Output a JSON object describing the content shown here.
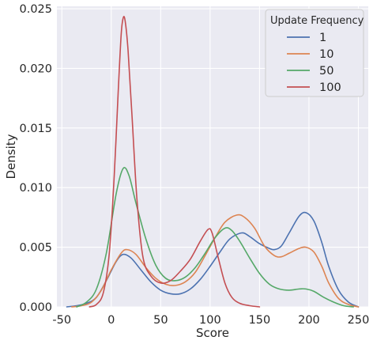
{
  "chart_data": {
    "type": "line",
    "subtype": "kde",
    "title": "",
    "xlabel": "Score",
    "ylabel": "Density",
    "xlim": [
      -55,
      260
    ],
    "ylim": [
      0,
      0.0252
    ],
    "x_ticks": [
      -50,
      0,
      50,
      100,
      150,
      200,
      250
    ],
    "y_ticks": [
      0.0,
      0.005,
      0.01,
      0.015,
      0.02,
      0.025
    ],
    "y_tick_labels": [
      "0.000",
      "0.005",
      "0.010",
      "0.015",
      "0.020",
      "0.025"
    ],
    "grid": true,
    "legend": {
      "title": "Update Frequency",
      "position": "top-right"
    },
    "series": [
      {
        "name": "1",
        "color": "#4c72b0",
        "points": [
          [
            -45,
            0
          ],
          [
            -35,
            0.0001
          ],
          [
            -25,
            0.0003
          ],
          [
            -15,
            0.0008
          ],
          [
            -5,
            0.0022
          ],
          [
            5,
            0.0038
          ],
          [
            12,
            0.0044
          ],
          [
            20,
            0.0041
          ],
          [
            30,
            0.0031
          ],
          [
            40,
            0.0021
          ],
          [
            50,
            0.0014
          ],
          [
            60,
            0.0011
          ],
          [
            70,
            0.0011
          ],
          [
            80,
            0.0015
          ],
          [
            90,
            0.0023
          ],
          [
            100,
            0.0034
          ],
          [
            110,
            0.0046
          ],
          [
            120,
            0.0057
          ],
          [
            132,
            0.0062
          ],
          [
            140,
            0.0059
          ],
          [
            150,
            0.0053
          ],
          [
            160,
            0.0049
          ],
          [
            165,
            0.0048
          ],
          [
            172,
            0.0051
          ],
          [
            180,
            0.0062
          ],
          [
            190,
            0.0076
          ],
          [
            197,
            0.0079
          ],
          [
            205,
            0.0072
          ],
          [
            213,
            0.0054
          ],
          [
            220,
            0.0034
          ],
          [
            230,
            0.0014
          ],
          [
            240,
            0.0004
          ],
          [
            250,
            0
          ]
        ]
      },
      {
        "name": "10",
        "color": "#dd8452",
        "points": [
          [
            -40,
            0
          ],
          [
            -30,
            0.0001
          ],
          [
            -20,
            0.0004
          ],
          [
            -10,
            0.0014
          ],
          [
            0,
            0.0031
          ],
          [
            10,
            0.0045
          ],
          [
            16,
            0.0048
          ],
          [
            25,
            0.0044
          ],
          [
            35,
            0.0033
          ],
          [
            45,
            0.0024
          ],
          [
            55,
            0.0019
          ],
          [
            65,
            0.0018
          ],
          [
            75,
            0.0021
          ],
          [
            85,
            0.0029
          ],
          [
            95,
            0.0043
          ],
          [
            105,
            0.0058
          ],
          [
            115,
            0.0071
          ],
          [
            127,
            0.0077
          ],
          [
            135,
            0.0075
          ],
          [
            145,
            0.0066
          ],
          [
            155,
            0.0051
          ],
          [
            165,
            0.0043
          ],
          [
            172,
            0.0042
          ],
          [
            180,
            0.0045
          ],
          [
            190,
            0.0049
          ],
          [
            197,
            0.005
          ],
          [
            205,
            0.0046
          ],
          [
            213,
            0.0034
          ],
          [
            220,
            0.002
          ],
          [
            230,
            0.0007
          ],
          [
            240,
            0.0002
          ],
          [
            250,
            0
          ]
        ]
      },
      {
        "name": "50",
        "color": "#55a868",
        "points": [
          [
            -35,
            0
          ],
          [
            -25,
            0.0004
          ],
          [
            -15,
            0.0015
          ],
          [
            -5,
            0.0045
          ],
          [
            5,
            0.0095
          ],
          [
            12,
            0.0116
          ],
          [
            18,
            0.011
          ],
          [
            25,
            0.0087
          ],
          [
            35,
            0.0057
          ],
          [
            45,
            0.0035
          ],
          [
            55,
            0.0024
          ],
          [
            65,
            0.0022
          ],
          [
            75,
            0.0025
          ],
          [
            85,
            0.0033
          ],
          [
            95,
            0.0045
          ],
          [
            105,
            0.0058
          ],
          [
            115,
            0.0066
          ],
          [
            122,
            0.0064
          ],
          [
            130,
            0.0055
          ],
          [
            140,
            0.0041
          ],
          [
            150,
            0.0028
          ],
          [
            160,
            0.0019
          ],
          [
            170,
            0.0015
          ],
          [
            180,
            0.0014
          ],
          [
            190,
            0.0015
          ],
          [
            197,
            0.0015
          ],
          [
            205,
            0.0013
          ],
          [
            215,
            0.0008
          ],
          [
            225,
            0.0004
          ],
          [
            235,
            0.0001
          ],
          [
            245,
            0
          ]
        ]
      },
      {
        "name": "100",
        "color": "#c44e52",
        "points": [
          [
            -22,
            0
          ],
          [
            -15,
            0.0002
          ],
          [
            -8,
            0.0012
          ],
          [
            -2,
            0.0045
          ],
          [
            3,
            0.011
          ],
          [
            7,
            0.018
          ],
          [
            10,
            0.0228
          ],
          [
            12,
            0.0242
          ],
          [
            14,
            0.024
          ],
          [
            17,
            0.0215
          ],
          [
            21,
            0.016
          ],
          [
            26,
            0.009
          ],
          [
            32,
            0.0042
          ],
          [
            40,
            0.0026
          ],
          [
            50,
            0.002
          ],
          [
            60,
            0.0022
          ],
          [
            70,
            0.003
          ],
          [
            80,
            0.004
          ],
          [
            90,
            0.0055
          ],
          [
            98,
            0.0065
          ],
          [
            102,
            0.0062
          ],
          [
            108,
            0.0042
          ],
          [
            115,
            0.002
          ],
          [
            122,
            0.0008
          ],
          [
            130,
            0.0003
          ],
          [
            140,
            0.0001
          ],
          [
            150,
            0
          ]
        ]
      }
    ]
  }
}
